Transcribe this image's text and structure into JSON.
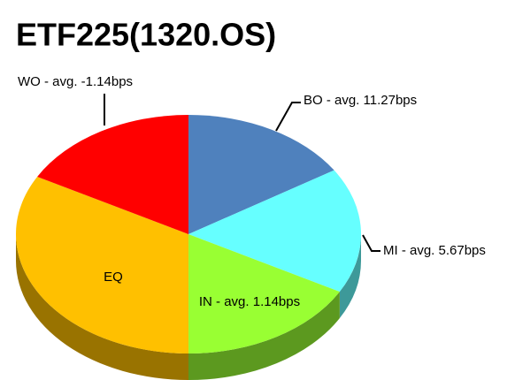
{
  "chart_data": {
    "type": "pie",
    "title": "ETF225(1320.OS)",
    "categories": [
      "BO - avg. 11.27bps",
      "MI - avg. 5.67bps",
      "IN - avg. 1.14bps",
      "EQ",
      "WO - avg. -1.14bps"
    ],
    "values": [
      16,
      17,
      17,
      33,
      17
    ],
    "colors": [
      "#4f81bd",
      "#66ffff",
      "#99ff33",
      "#ffc000",
      "#ff0000"
    ]
  }
}
